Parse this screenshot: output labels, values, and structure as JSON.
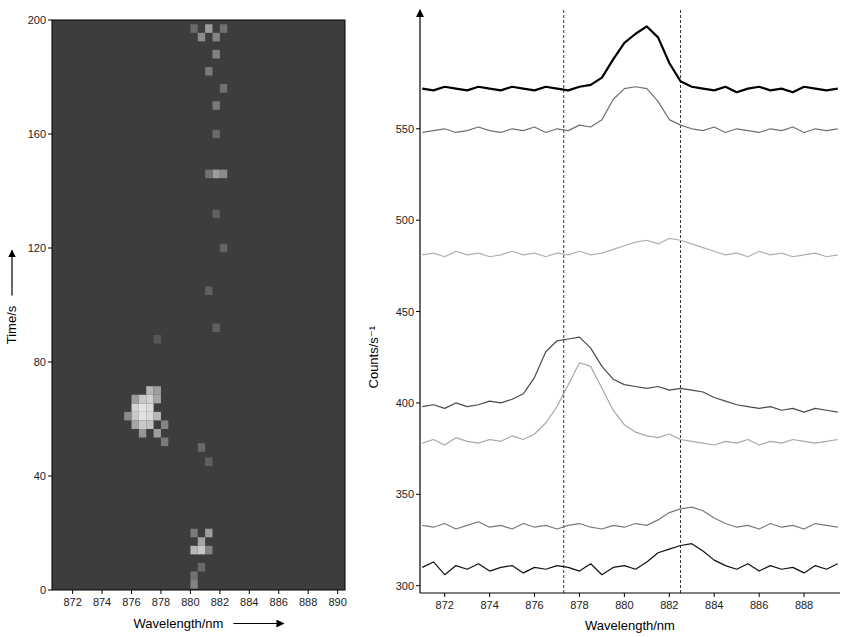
{
  "chart_data": [
    {
      "type": "heatmap",
      "x_label": "Wavelength/nm",
      "y_label": "Time/s",
      "xlim": [
        870.6,
        890.5
      ],
      "ylim": [
        0,
        200
      ],
      "xticks": [
        872,
        874,
        876,
        878,
        880,
        882,
        884,
        886,
        888,
        890
      ],
      "yticks": [
        0,
        40,
        80,
        120,
        160,
        200
      ],
      "cell_width": 0.5,
      "cell_height": 3,
      "cells": [
        [
          876.25,
          58,
          0.6
        ],
        [
          876.25,
          61,
          0.8
        ],
        [
          876.25,
          64,
          0.85
        ],
        [
          876.75,
          55,
          0.5
        ],
        [
          876.75,
          58,
          0.8
        ],
        [
          876.75,
          61,
          0.95
        ],
        [
          876.75,
          64,
          0.95
        ],
        [
          876.75,
          67,
          0.8
        ],
        [
          877.25,
          58,
          0.75
        ],
        [
          877.25,
          61,
          0.9
        ],
        [
          877.25,
          64,
          0.9
        ],
        [
          877.25,
          67,
          0.85
        ],
        [
          877.25,
          70,
          0.7
        ],
        [
          877.75,
          55,
          0.55
        ],
        [
          877.75,
          61,
          0.7
        ],
        [
          877.75,
          67,
          0.6
        ],
        [
          877.75,
          70,
          0.55
        ],
        [
          878.25,
          52,
          0.35
        ],
        [
          878.25,
          58,
          0.4
        ],
        [
          875.75,
          61,
          0.45
        ],
        [
          876.25,
          67,
          0.55
        ],
        [
          880.25,
          14,
          0.7
        ],
        [
          880.75,
          14,
          0.8
        ],
        [
          880.75,
          17,
          0.6
        ],
        [
          881.25,
          20,
          0.55
        ],
        [
          880.25,
          20,
          0.35
        ],
        [
          881.25,
          14,
          0.4
        ],
        [
          880.25,
          2,
          0.4
        ],
        [
          880.25,
          5,
          0.3
        ],
        [
          880.75,
          8,
          0.25
        ],
        [
          881.25,
          45,
          0.2
        ],
        [
          880.75,
          50,
          0.25
        ],
        [
          881.75,
          92,
          0.2
        ],
        [
          881.25,
          105,
          0.2
        ],
        [
          882.25,
          120,
          0.22
        ],
        [
          881.75,
          132,
          0.2
        ],
        [
          881.75,
          146,
          0.55
        ],
        [
          882.25,
          146,
          0.45
        ],
        [
          881.25,
          146,
          0.3
        ],
        [
          881.75,
          160,
          0.25
        ],
        [
          881.75,
          170,
          0.35
        ],
        [
          882.25,
          176,
          0.3
        ],
        [
          881.25,
          182,
          0.35
        ],
        [
          881.75,
          188,
          0.4
        ],
        [
          880.75,
          194,
          0.45
        ],
        [
          881.25,
          197,
          0.55
        ],
        [
          881.75,
          194,
          0.4
        ],
        [
          882.25,
          197,
          0.3
        ],
        [
          880.25,
          197,
          0.25
        ],
        [
          877.75,
          88,
          0.15
        ]
      ]
    },
    {
      "type": "line",
      "x_label": "Wavelength/nm",
      "y_label": "Counts/s⁻¹",
      "xlim": [
        870.9,
        889.6
      ],
      "ylim": [
        296,
        615
      ],
      "xticks": [
        872,
        874,
        876,
        878,
        880,
        882,
        884,
        886,
        888
      ],
      "yticks": [
        300,
        350,
        400,
        450,
        500,
        550
      ],
      "reference_lines": [
        877.3,
        882.5
      ],
      "x": [
        871,
        871.5,
        872,
        872.5,
        873,
        873.5,
        874,
        874.5,
        875,
        875.5,
        876,
        876.5,
        877,
        877.5,
        878,
        878.5,
        879,
        879.5,
        880,
        880.5,
        881,
        881.5,
        882,
        882.5,
        883,
        883.5,
        884,
        884.5,
        885,
        885.5,
        886,
        886.5,
        887,
        887.5,
        888,
        888.5,
        889,
        889.5
      ],
      "series": [
        {
          "color": "#111111",
          "values": [
            310,
            313,
            306,
            311,
            309,
            312,
            308,
            310,
            311,
            307,
            310,
            309,
            311,
            310,
            308,
            312,
            306,
            310,
            311,
            309,
            313,
            318,
            320,
            322,
            323,
            319,
            314,
            311,
            309,
            312,
            308,
            311,
            309,
            310,
            307,
            311,
            309,
            312
          ]
        },
        {
          "color": "#7a7a7a",
          "values": [
            333,
            332,
            334,
            331,
            333,
            335,
            332,
            333,
            331,
            334,
            332,
            333,
            331,
            333,
            334,
            332,
            331,
            333,
            332,
            334,
            333,
            336,
            340,
            342,
            343,
            341,
            337,
            334,
            332,
            333,
            331,
            334,
            332,
            333,
            331,
            334,
            333,
            332
          ]
        },
        {
          "color": "#a8a8a8",
          "values": [
            378,
            380,
            377,
            381,
            379,
            378,
            380,
            379,
            382,
            380,
            383,
            389,
            398,
            410,
            422,
            420,
            408,
            396,
            388,
            384,
            382,
            381,
            383,
            380,
            379,
            378,
            377,
            379,
            378,
            380,
            377,
            379,
            378,
            380,
            379,
            378,
            379,
            380
          ]
        },
        {
          "color": "#4a4a4a",
          "values": [
            398,
            399,
            397,
            400,
            398,
            399,
            401,
            400,
            402,
            405,
            414,
            428,
            434,
            435,
            436,
            430,
            420,
            413,
            410,
            409,
            408,
            409,
            407,
            408,
            407,
            406,
            403,
            401,
            399,
            398,
            397,
            398,
            396,
            397,
            395,
            397,
            396,
            395
          ]
        },
        {
          "color": "#b0b0b0",
          "values": [
            481,
            482,
            480,
            483,
            481,
            482,
            480,
            481,
            483,
            481,
            482,
            480,
            482,
            481,
            483,
            481,
            482,
            484,
            486,
            488,
            489,
            487,
            490,
            489,
            487,
            485,
            483,
            481,
            482,
            480,
            483,
            481,
            482,
            480,
            481,
            482,
            480,
            481
          ]
        },
        {
          "color": "#707070",
          "values": [
            548,
            549,
            550,
            548,
            549,
            551,
            549,
            548,
            550,
            549,
            551,
            548,
            550,
            549,
            552,
            551,
            555,
            566,
            572,
            573,
            572,
            565,
            555,
            552,
            550,
            549,
            551,
            548,
            550,
            549,
            548,
            550,
            549,
            551,
            548,
            550,
            549,
            550
          ]
        },
        {
          "color": "#000000",
          "values": [
            572,
            571,
            573,
            572,
            571,
            573,
            572,
            571,
            573,
            572,
            571,
            573,
            572,
            571,
            573,
            574,
            578,
            588,
            597,
            602,
            606,
            600,
            586,
            576,
            573,
            572,
            571,
            573,
            570,
            572,
            573,
            571,
            572,
            570,
            573,
            572,
            571,
            572
          ]
        }
      ]
    }
  ]
}
